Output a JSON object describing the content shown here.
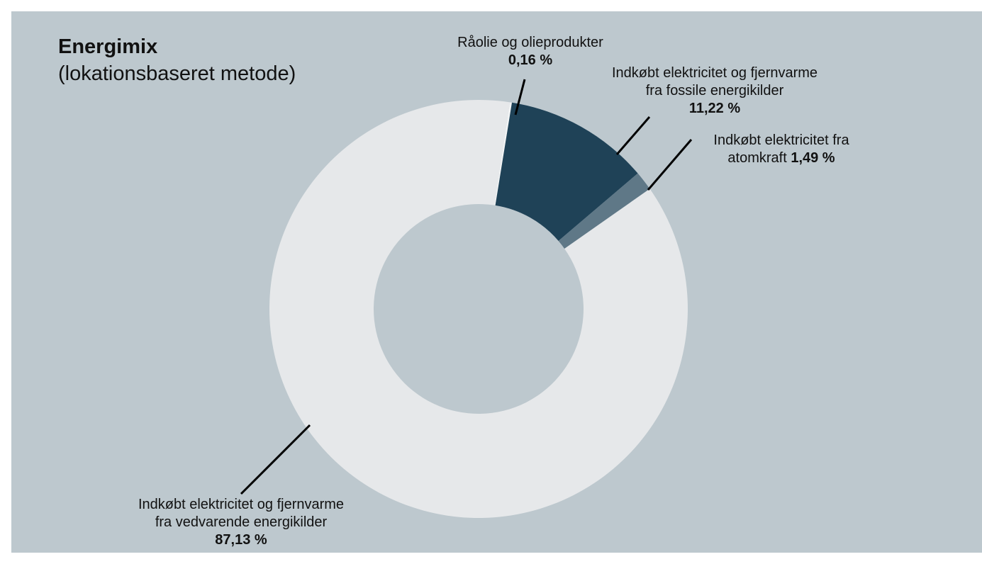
{
  "chart_data": {
    "type": "donut",
    "title": "Energimix",
    "subtitle": "(lokationsbaseret metode)",
    "categories": [
      "Råolie og olieprodukter",
      "Indkøbt elektricitet og fjernvarme\nfra fossile energikilder",
      "Indkøbt elektricitet fra\natomkraft",
      "Indkøbt elektricitet og fjernvarme\nfra vedvarende energikilder"
    ],
    "values": [
      0.16,
      11.22,
      1.49,
      87.13
    ],
    "value_labels": [
      "0,16 %",
      "11,22 %",
      "1,49 %",
      "87,13 %"
    ],
    "colors": [
      "#f2f4f5",
      "#1f4257",
      "#5f7887",
      "#e6e8ea"
    ]
  }
}
